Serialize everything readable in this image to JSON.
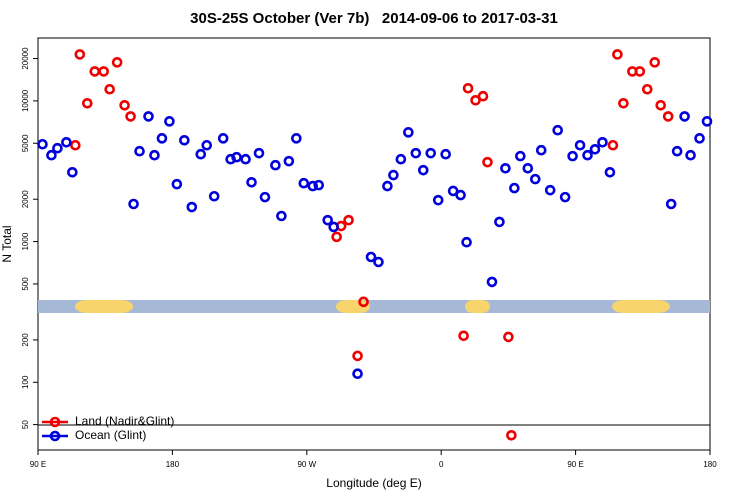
{
  "chart_data": {
    "type": "scatter",
    "title": "30S-25S October (Ver 7b)   2014-09-06 to 2017-03-31",
    "x_label": "Longitude (deg E)",
    "y_label": "N Total",
    "xlim": [
      90,
      540
    ],
    "xticks": [
      {
        "value": 90,
        "label": "90 E"
      },
      {
        "value": 180,
        "label": "180"
      },
      {
        "value": 270,
        "label": "90 W"
      },
      {
        "value": 360,
        "label": "0"
      },
      {
        "value": 450,
        "label": "90 E"
      },
      {
        "value": 540,
        "label": "180"
      }
    ],
    "ylim": [
      33,
      28000
    ],
    "log_y": true,
    "yticks": [
      50,
      100,
      200,
      500,
      1000,
      2000,
      5000,
      10000,
      20000
    ],
    "legend": "bottom-left",
    "series": [
      {
        "name": "Land (Nadir&Glint)",
        "color": "#ee0000",
        "x": [
          115,
          118,
          123,
          128,
          134,
          138,
          143,
          148,
          152,
          290,
          293,
          298,
          304,
          308,
          375,
          378,
          383,
          388,
          391,
          405,
          407,
          475,
          478,
          482,
          488,
          493,
          498,
          503,
          507,
          512
        ],
        "values": [
          4840,
          21400,
          9620,
          16200,
          16200,
          12100,
          18800,
          9310,
          7760,
          1080,
          1290,
          1420,
          154,
          373,
          214,
          12300,
          10100,
          10800,
          3670,
          210,
          42,
          4840,
          21400,
          9620,
          16200,
          16200,
          12100,
          18800,
          9310,
          7760
        ]
      },
      {
        "name": "Ocean (Glint)",
        "color": "#0000dd",
        "x": [
          93,
          99,
          103,
          109,
          113,
          154,
          158,
          164,
          168,
          173,
          178,
          183,
          188,
          193,
          199,
          203,
          208,
          214,
          219,
          223,
          229,
          233,
          238,
          242,
          249,
          253,
          258,
          263,
          268,
          274,
          278,
          284,
          288,
          304,
          313,
          318,
          324,
          328,
          333,
          338,
          343,
          348,
          353,
          358,
          363,
          368,
          373,
          377,
          394,
          399,
          403,
          409,
          413,
          418,
          423,
          427,
          433,
          438,
          443,
          448,
          453,
          458,
          463,
          468,
          473,
          514,
          518,
          523,
          527,
          533,
          538
        ],
        "values": [
          4920,
          4110,
          4610,
          5080,
          3110,
          1850,
          4390,
          7760,
          4110,
          5420,
          7160,
          2560,
          5250,
          1760,
          4180,
          4840,
          2100,
          5420,
          3850,
          3980,
          3850,
          2640,
          4250,
          2070,
          3490,
          1520,
          3730,
          5420,
          2600,
          2480,
          2520,
          1420,
          1270,
          115,
          777,
          716,
          2480,
          2970,
          3850,
          5980,
          4250,
          3220,
          4250,
          1970,
          4180,
          2290,
          2140,
          990,
          517,
          1380,
          3320,
          2400,
          4050,
          3320,
          2780,
          4460,
          2320,
          6190,
          2070,
          4050,
          4840,
          4110,
          4530,
          5080,
          3110,
          1850,
          4390,
          7760,
          4110,
          5420,
          7160
        ]
      }
    ]
  }
}
